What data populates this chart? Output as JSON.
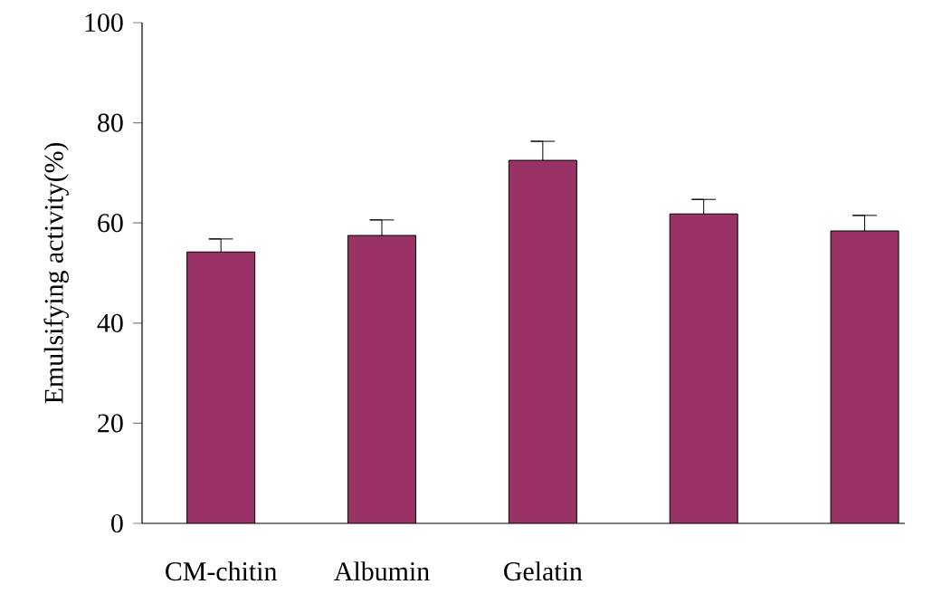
{
  "chart_data": {
    "type": "bar",
    "ylabel": "Emulsifying activity(%)",
    "categories": [
      "CM-chitin",
      "Albumin",
      "Gelatin",
      null,
      null
    ],
    "values": [
      54.2,
      57.5,
      72.5,
      61.8,
      58.4
    ],
    "errors": [
      [
        54.2,
        56.8
      ],
      [
        57.5,
        60.6
      ],
      [
        72.5,
        76.3
      ],
      [
        61.8,
        64.7
      ],
      [
        58.4,
        61.5
      ]
    ],
    "color": "#993366",
    "ylim": [
      0,
      100
    ],
    "yticks": [
      0,
      20,
      40,
      60,
      80,
      100
    ],
    "grid": false
  }
}
